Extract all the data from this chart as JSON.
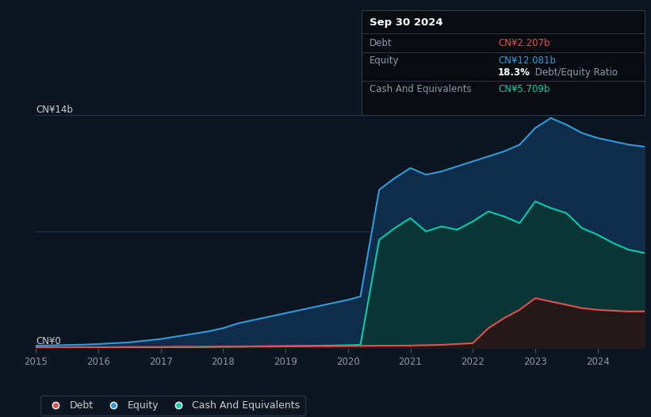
{
  "background_color": "#0d1520",
  "plot_bg_color": "#0d1520",
  "title_box": {
    "date": "Sep 30 2024",
    "debt_label": "Debt",
    "debt_value": "CN¥2.207b",
    "equity_label": "Equity",
    "equity_value": "CN¥12.081b",
    "ratio_text": "18.3%",
    "ratio_suffix": " Debt/Equity Ratio",
    "cash_label": "Cash And Equivalents",
    "cash_value": "CN¥5.709b"
  },
  "y_label_top": "CN¥14b",
  "y_label_bottom": "CN¥0",
  "debt_color": "#e05252",
  "equity_color": "#2e9bda",
  "cash_color": "#00ccaa",
  "equity_fill": "#0f2d4a",
  "cash_fill": "#0a3535",
  "debt_fill": "#251818",
  "years": [
    2015.0,
    2015.25,
    2015.5,
    2015.75,
    2016.0,
    2016.25,
    2016.5,
    2016.75,
    2017.0,
    2017.25,
    2017.5,
    2017.75,
    2018.0,
    2018.25,
    2018.5,
    2018.75,
    2019.0,
    2019.25,
    2019.5,
    2019.75,
    2020.0,
    2020.1,
    2020.2,
    2020.5,
    2020.75,
    2021.0,
    2021.25,
    2021.5,
    2021.75,
    2022.0,
    2022.25,
    2022.5,
    2022.75,
    2023.0,
    2023.25,
    2023.5,
    2023.75,
    2024.0,
    2024.25,
    2024.5,
    2024.75
  ],
  "equity": [
    0.15,
    0.17,
    0.19,
    0.21,
    0.25,
    0.3,
    0.35,
    0.45,
    0.55,
    0.7,
    0.85,
    1.0,
    1.2,
    1.5,
    1.7,
    1.9,
    2.1,
    2.3,
    2.5,
    2.7,
    2.9,
    3.0,
    3.1,
    9.5,
    10.2,
    10.8,
    10.4,
    10.6,
    10.9,
    11.2,
    11.5,
    11.8,
    12.2,
    13.2,
    13.8,
    13.4,
    12.9,
    12.6,
    12.4,
    12.2,
    12.081
  ],
  "cash": [
    0.02,
    0.02,
    0.03,
    0.03,
    0.04,
    0.04,
    0.05,
    0.05,
    0.06,
    0.07,
    0.07,
    0.08,
    0.09,
    0.1,
    0.11,
    0.12,
    0.13,
    0.14,
    0.15,
    0.16,
    0.18,
    0.19,
    0.2,
    6.5,
    7.2,
    7.8,
    7.0,
    7.3,
    7.1,
    7.6,
    8.2,
    7.9,
    7.5,
    8.8,
    8.4,
    8.1,
    7.2,
    6.8,
    6.3,
    5.9,
    5.709
  ],
  "debt": [
    0.05,
    0.05,
    0.05,
    0.06,
    0.06,
    0.06,
    0.07,
    0.07,
    0.07,
    0.08,
    0.08,
    0.08,
    0.09,
    0.09,
    0.1,
    0.1,
    0.11,
    0.11,
    0.12,
    0.12,
    0.13,
    0.13,
    0.14,
    0.15,
    0.15,
    0.16,
    0.18,
    0.2,
    0.25,
    0.3,
    1.2,
    1.8,
    2.3,
    3.0,
    2.8,
    2.6,
    2.4,
    2.3,
    2.25,
    2.2,
    2.207
  ],
  "x_ticks": [
    2015,
    2016,
    2017,
    2018,
    2019,
    2020,
    2021,
    2022,
    2023,
    2024
  ],
  "ylim": [
    0,
    15.5
  ],
  "legend_items": [
    "Debt",
    "Equity",
    "Cash And Equivalents"
  ]
}
